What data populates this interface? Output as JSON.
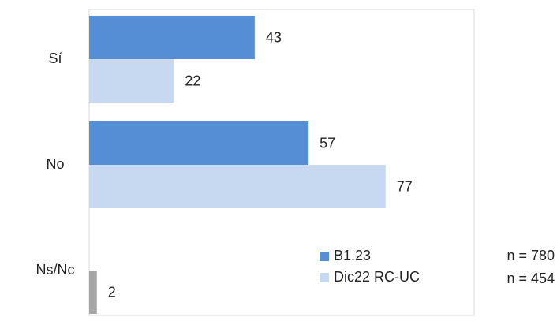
{
  "chart_data": {
    "type": "hbar",
    "categories": [
      "Sí",
      "No",
      "Ns/Nc"
    ],
    "series": [
      {
        "name": "B1.23",
        "color": "#558ed5",
        "values": [
          43,
          57,
          null
        ]
      },
      {
        "name": "Dic22 RC-UC",
        "color": "#c6d9f1",
        "values": [
          22,
          77,
          2
        ],
        "point_colors": [
          "#c6d9f1",
          "#c6d9f1",
          "#a6a6a6"
        ]
      }
    ],
    "xlim": [
      0,
      100
    ],
    "annotations": [
      "n = 780",
      "n = 454"
    ]
  }
}
